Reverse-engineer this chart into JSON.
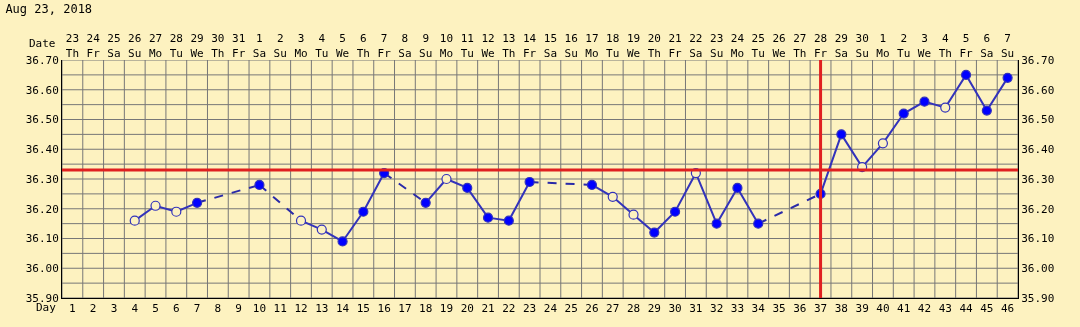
{
  "chart_data": {
    "type": "line",
    "title": "Aug 23, 2018",
    "xlabel": "Day",
    "x2label": "Date",
    "x": [
      4,
      5,
      6,
      7,
      8,
      9,
      10,
      11,
      12,
      13,
      14,
      15,
      16,
      17,
      18,
      19,
      20,
      21,
      22,
      23,
      24,
      25,
      26,
      27,
      28,
      29,
      30,
      31,
      32,
      33,
      34,
      35,
      36,
      37,
      38,
      39,
      40,
      41,
      42,
      43,
      44,
      45,
      46
    ],
    "series": [
      {
        "color": "#3333bb",
        "colors": [
          "#fdf2c0",
          "#fdf2c0",
          "#fdf2c0",
          "#0000ff",
          "#0000ff",
          "#0000ff",
          "#0000ff",
          "#0000ff",
          "#fdf2c0",
          "#fdf2c0",
          "#0000ff",
          "#0000ff",
          "#0000ff",
          "#0000ff",
          "#0000ff",
          "#fdf2c0",
          "#0000ff",
          "#0000ff",
          "#0000ff",
          "#0000ff",
          "#0000ff",
          "#0000ff",
          "#0000ff",
          "#fdf2c0",
          "#fdf2c0",
          "#0000ff",
          "#0000ff",
          "#fdf2c0",
          "#0000ff",
          "#0000ff",
          "#0000ff",
          "#0000ff",
          "#0000ff",
          "#0000ff",
          "#0000ff",
          "#fdf2c0",
          "#fdf2c0",
          "#0000ff",
          "#0000ff",
          "#fdf2c0",
          "#0000ff",
          "#0000ff",
          "#0000ff"
        ],
        "values": [
          36.16,
          36.21,
          36.19,
          36.22,
          null,
          null,
          36.28,
          null,
          36.16,
          36.13,
          36.09,
          36.19,
          36.32,
          null,
          36.22,
          36.3,
          36.27,
          36.17,
          36.16,
          36.29,
          null,
          null,
          36.28,
          36.24,
          36.18,
          36.12,
          36.19,
          36.32,
          36.15,
          36.27,
          36.15,
          null,
          null,
          36.25,
          36.45,
          36.34,
          36.42,
          36.52,
          36.56,
          36.54,
          36.65,
          36.53,
          36.64
        ]
      },
      {
        "color": "#2a2aa8",
        "line_style": "dashed",
        "marker": "none",
        "x": [
          7,
          10
        ],
        "values": [
          36.22,
          36.28
        ]
      },
      {
        "color": "#2a2aa8",
        "line_style": "dashed",
        "marker": "none",
        "x": [
          10,
          12
        ],
        "values": [
          36.28,
          36.16
        ]
      },
      {
        "color": "#2a2aa8",
        "line_style": "dashed",
        "marker": "none",
        "x": [
          16,
          18
        ],
        "values": [
          36.32,
          36.22
        ]
      },
      {
        "color": "#2a2aa8",
        "line_style": "dashed",
        "marker": "none",
        "x": [
          23,
          26
        ],
        "values": [
          36.29,
          36.28
        ]
      },
      {
        "color": "#2a2aa8",
        "line_style": "dashed",
        "marker": "none",
        "x": [
          34,
          37
        ],
        "values": [
          36.15,
          36.25
        ]
      }
    ],
    "marker": "circle",
    "line_style": "solid",
    "grid": true,
    "xlim": [
      0.5,
      46.5
    ],
    "xticks": [
      1,
      2,
      3,
      4,
      5,
      6,
      7,
      8,
      9,
      10,
      11,
      12,
      13,
      14,
      15,
      16,
      17,
      18,
      19,
      20,
      21,
      22,
      23,
      24,
      25,
      26,
      27,
      28,
      29,
      30,
      31,
      32,
      33,
      34,
      35,
      36,
      37,
      38,
      39,
      40,
      41,
      42,
      43,
      44,
      45,
      46
    ],
    "x2lim": [
      "2018-08-22T12:00",
      "2018-10-07T12:00"
    ],
    "x2ticks": [
      {
        "value": "2018-08-23",
        "label": "23\nTh"
      },
      {
        "value": "2018-08-24",
        "label": "24\nFr"
      },
      {
        "value": "2018-08-25",
        "label": "25\nSa"
      },
      {
        "value": "2018-08-26",
        "label": "26\nSu"
      },
      {
        "value": "2018-08-27",
        "label": "27\nMo"
      },
      {
        "value": "2018-08-28",
        "label": "28\nTu"
      },
      {
        "value": "2018-08-29",
        "label": "29\nWe"
      },
      {
        "value": "2018-08-30",
        "label": "30\nTh"
      },
      {
        "value": "2018-08-31",
        "label": "31\nFr"
      },
      {
        "value": "2018-09-01",
        "label": "1\nSa"
      },
      {
        "value": "2018-09-02",
        "label": "2\nSu"
      },
      {
        "value": "2018-09-03",
        "label": "3\nMo"
      },
      {
        "value": "2018-09-04",
        "label": "4\nTu"
      },
      {
        "value": "2018-09-05",
        "label": "5\nWe"
      },
      {
        "value": "2018-09-06",
        "label": "6\nTh"
      },
      {
        "value": "2018-09-07",
        "label": "7\nFr"
      },
      {
        "value": "2018-09-08",
        "label": "8\nSa"
      },
      {
        "value": "2018-09-09",
        "label": "9\nSu"
      },
      {
        "value": "2018-09-10",
        "label": "10\nMo"
      },
      {
        "value": "2018-09-11",
        "label": "11\nTu"
      },
      {
        "value": "2018-09-12",
        "label": "12\nWe"
      },
      {
        "value": "2018-09-13",
        "label": "13\nTh"
      },
      {
        "value": "2018-09-14",
        "label": "14\nFr"
      },
      {
        "value": "2018-09-15",
        "label": "15\nSa"
      },
      {
        "value": "2018-09-16",
        "label": "16\nSu"
      },
      {
        "value": "2018-09-17",
        "label": "17\nMo"
      },
      {
        "value": "2018-09-18",
        "label": "18\nTu"
      },
      {
        "value": "2018-09-19",
        "label": "19\nWe"
      },
      {
        "value": "2018-09-20",
        "label": "20\nTh"
      },
      {
        "value": "2018-09-21",
        "label": "21\nFr"
      },
      {
        "value": "2018-09-22",
        "label": "22\nSa"
      },
      {
        "value": "2018-09-23",
        "label": "23\nSu"
      },
      {
        "value": "2018-09-24",
        "label": "24\nMo"
      },
      {
        "value": "2018-09-25",
        "label": "25\nTu"
      },
      {
        "value": "2018-09-26",
        "label": "26\nWe"
      },
      {
        "value": "2018-09-27",
        "label": "27\nTh"
      },
      {
        "value": "2018-09-28",
        "label": "28\nFr"
      },
      {
        "value": "2018-09-29",
        "label": "29\nSa"
      },
      {
        "value": "2018-09-30",
        "label": "30\nSu"
      },
      {
        "value": "2018-10-01",
        "label": "1\nMo"
      },
      {
        "value": "2018-10-02",
        "label": "2\nTu"
      },
      {
        "value": "2018-10-03",
        "label": "3\nWe"
      },
      {
        "value": "2018-10-04",
        "label": "4\nTh"
      },
      {
        "value": "2018-10-05",
        "label": "5\nFr"
      },
      {
        "value": "2018-10-06",
        "label": "6\nSa"
      },
      {
        "value": "2018-10-07",
        "label": "7\nSu"
      }
    ],
    "ylim": [
      35.9,
      36.7
    ],
    "yticks": [
      {
        "value": 35.9,
        "label": "35.90"
      },
      {
        "value": 36.0,
        "label": "36.00"
      },
      {
        "value": 36.1,
        "label": "36.10"
      },
      {
        "value": 36.2,
        "label": "36.20"
      },
      {
        "value": 36.3,
        "label": "36.30"
      },
      {
        "value": 36.4,
        "label": "36.40"
      },
      {
        "value": 36.5,
        "label": "36.50"
      },
      {
        "value": 36.6,
        "label": "36.60"
      },
      {
        "value": 36.7,
        "label": "36.70"
      }
    ],
    "y2lim": [
      35.9,
      36.7
    ],
    "y2ticks": [
      {
        "value": 35.9,
        "label": "35.90"
      },
      {
        "value": 36.0,
        "label": "36.00"
      },
      {
        "value": 36.1,
        "label": "36.10"
      },
      {
        "value": 36.2,
        "label": "36.20"
      },
      {
        "value": 36.3,
        "label": "36.30"
      },
      {
        "value": 36.4,
        "label": "36.40"
      },
      {
        "value": 36.5,
        "label": "36.50"
      },
      {
        "value": 36.6,
        "label": "36.60"
      },
      {
        "value": 36.7,
        "label": "36.70"
      }
    ],
    "ref_lines": [
      {
        "axis": "y",
        "value": 36.33,
        "color": "#e02020"
      },
      {
        "axis": "x",
        "value": 37,
        "color": "#e02020"
      }
    ]
  }
}
